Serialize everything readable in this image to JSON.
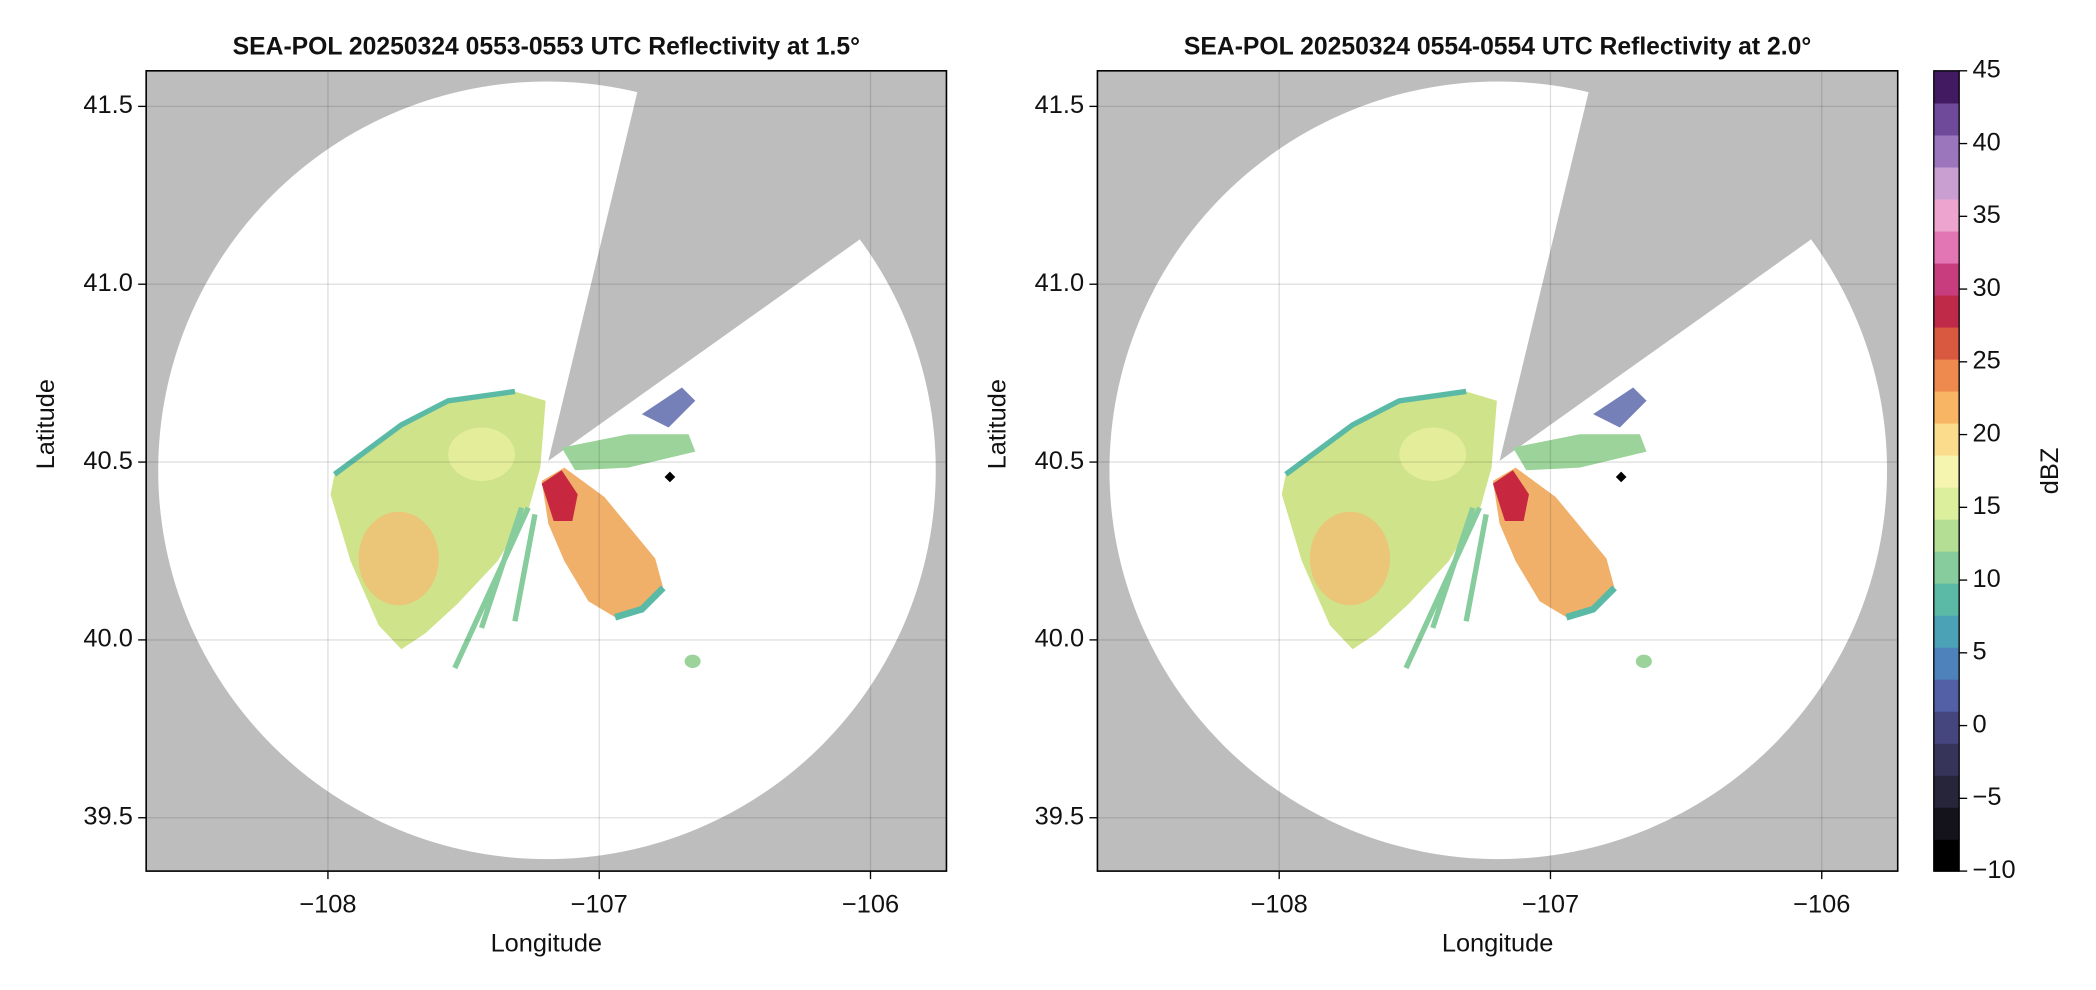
{
  "chart_data": [
    {
      "type": "radar_ppi",
      "title": "SEA-POL 20250324 0553-0553 UTC Reflectivity at 1.5°",
      "xlabel": "Longitude",
      "ylabel": "Latitude",
      "xlim": [
        -108.67,
        -105.72
      ],
      "ylim": [
        39.35,
        41.6
      ],
      "xticks": [
        {
          "value": -108,
          "label": "−108"
        },
        {
          "value": -107,
          "label": "−107"
        },
        {
          "value": -106,
          "label": "−106"
        }
      ],
      "yticks": [
        39.5,
        {
          "value": 40,
          "label": "40.0"
        },
        40.5,
        {
          "value": 41,
          "label": "41.0"
        },
        41.5
      ],
      "grid": true
    },
    {
      "type": "radar_ppi",
      "title": "SEA-POL 20250324 0554-0554 UTC Reflectivity at 2.0°",
      "xlabel": "Longitude",
      "ylabel": "Latitude",
      "xlim": [
        -108.67,
        -105.72
      ],
      "ylim": [
        39.35,
        41.6
      ],
      "xticks": [
        {
          "value": -108,
          "label": "−108"
        },
        {
          "value": -107,
          "label": "−107"
        },
        {
          "value": -106,
          "label": "−106"
        }
      ],
      "yticks": [
        39.5,
        {
          "value": 40,
          "label": "40.0"
        },
        40.5,
        {
          "value": 41,
          "label": "41.0"
        },
        41.5
      ],
      "grid": true
    }
  ],
  "colorbar": {
    "label": "dBZ",
    "lim": [
      -10,
      45
    ],
    "ticks": [
      {
        "value": -10,
        "label": "−10"
      },
      {
        "value": -5,
        "label": "−5"
      },
      0,
      5,
      10,
      15,
      20,
      25,
      30,
      35,
      40,
      45
    ],
    "colors": [
      "#000000",
      "#14131c",
      "#262539",
      "#37345a",
      "#46467f",
      "#5360a6",
      "#4d82bb",
      "#4ba2b6",
      "#5bbaa6",
      "#86cc9c",
      "#b4de94",
      "#dcef9c",
      "#f6f5b0",
      "#fbdc8c",
      "#f8b664",
      "#ee8a4e",
      "#d95840",
      "#bf2a49",
      "#c73d7e",
      "#e276b4",
      "#eda5cf",
      "#c89fd0",
      "#9c76bc",
      "#6f4a9b",
      "#421a61"
    ]
  }
}
